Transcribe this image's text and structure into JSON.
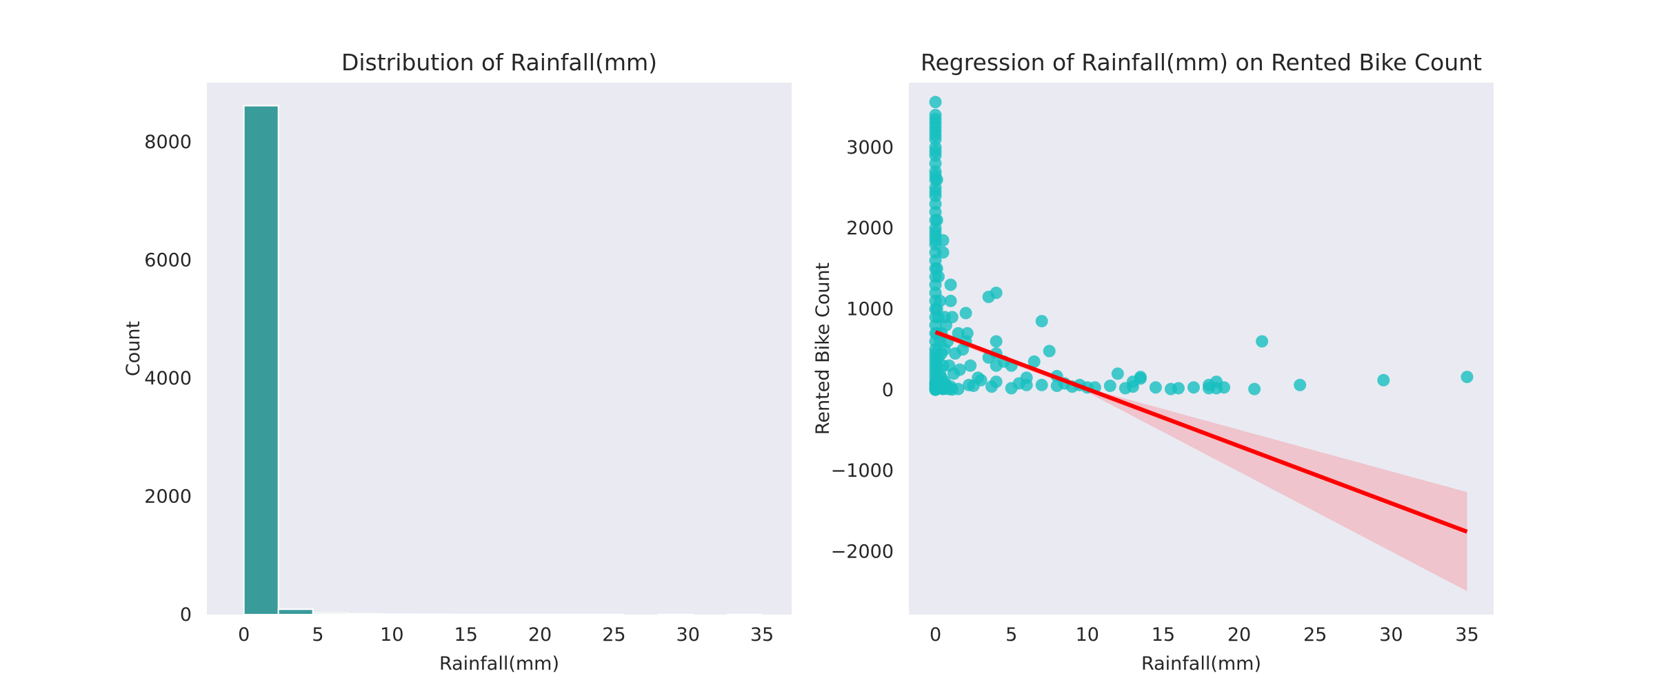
{
  "chart_data": [
    {
      "type": "bar",
      "title": "Distribution of Rainfall(mm)",
      "xlabel": "Rainfall(mm)",
      "ylabel": "Count",
      "xlim": [
        -2.5,
        37.0
      ],
      "ylim": [
        0,
        9000
      ],
      "xticks": [
        0,
        5,
        10,
        15,
        20,
        25,
        30,
        35
      ],
      "yticks": [
        0,
        2000,
        4000,
        6000,
        8000
      ],
      "bin_width": 2.33,
      "bins": [
        {
          "x0": 0.0,
          "value": 8610
        },
        {
          "x0": 2.33,
          "value": 90
        },
        {
          "x0": 4.67,
          "value": 25
        },
        {
          "x0": 7.0,
          "value": 14
        },
        {
          "x0": 9.33,
          "value": 8
        },
        {
          "x0": 11.67,
          "value": 5
        },
        {
          "x0": 14.0,
          "value": 3
        },
        {
          "x0": 16.33,
          "value": 3
        },
        {
          "x0": 18.67,
          "value": 3
        },
        {
          "x0": 21.0,
          "value": 2
        },
        {
          "x0": 23.33,
          "value": 1
        },
        {
          "x0": 25.67,
          "value": 0
        },
        {
          "x0": 28.0,
          "value": 1
        },
        {
          "x0": 30.33,
          "value": 0
        },
        {
          "x0": 32.67,
          "value": 1
        }
      ],
      "bar_color": "#3a9b9b",
      "grid": false
    },
    {
      "type": "scatter",
      "title": "Regression of Rainfall(mm) on Rented Bike Count",
      "xlabel": "Rainfall(mm)",
      "ylabel": "Rented Bike Count",
      "xlim": [
        -1.75,
        36.75
      ],
      "ylim": [
        -2780,
        3800
      ],
      "xticks": [
        0,
        5,
        10,
        15,
        20,
        25,
        30,
        35
      ],
      "yticks": [
        -2000,
        -1000,
        0,
        1000,
        2000,
        3000
      ],
      "point_color": "#17bfbf",
      "line_color": "#ff0000",
      "band_color": "#f0c0c8",
      "grid": false,
      "regression": {
        "x": [
          0,
          35
        ],
        "y": [
          715,
          -1755
        ]
      },
      "confidence_band": {
        "x": [
          0,
          10,
          35
        ],
        "lower": [
          675,
          -30,
          -2490
        ],
        "upper": [
          755,
          20,
          -1265
        ]
      },
      "points": {
        "x": [
          0,
          0,
          0,
          0,
          0,
          0,
          0,
          0,
          0,
          0,
          0,
          0,
          0,
          0,
          0,
          0,
          0,
          0,
          0,
          0,
          0,
          0,
          0,
          0,
          0,
          0,
          0,
          0,
          0,
          0,
          0,
          0,
          0,
          0,
          0,
          0,
          0,
          0,
          0,
          0,
          0,
          0,
          0,
          0,
          0,
          0,
          0,
          0,
          0,
          0,
          0,
          0,
          0,
          0,
          0.1,
          0.1,
          0.1,
          0.1,
          0.1,
          0.1,
          0.1,
          0.2,
          0.2,
          0.2,
          0.2,
          0.3,
          0.3,
          0.3,
          0.3,
          0.4,
          0.4,
          0.4,
          0.4,
          0.5,
          0.5,
          0.5,
          0.5,
          0.6,
          0.6,
          0.6,
          0.6,
          0.7,
          0.7,
          0.8,
          0.8,
          0.9,
          0.9,
          1.0,
          1.0,
          1.0,
          1.1,
          1.1,
          1.2,
          1.3,
          1.5,
          1.5,
          1.6,
          1.8,
          2.0,
          2.0,
          2.1,
          2.2,
          2.3,
          2.5,
          2.8,
          3.0,
          3.5,
          3.5,
          3.7,
          4.0,
          4.0,
          4.0,
          4.0,
          4.0,
          4.5,
          5.0,
          5.0,
          5.5,
          6.0,
          6.0,
          6.5,
          7.0,
          7.0,
          7.5,
          8.0,
          8.0,
          8.5,
          9.0,
          9.5,
          10.0,
          10.5,
          11.5,
          12.0,
          12.5,
          13.0,
          13.0,
          13.5,
          13.5,
          14.5,
          15.5,
          16.0,
          17.0,
          18.0,
          18.0,
          18.5,
          18.5,
          19.0,
          21.0,
          21.5,
          24.0,
          29.5,
          35.0
        ],
        "y": [
          3560,
          3400,
          3350,
          3300,
          3250,
          3200,
          3150,
          3100,
          3000,
          2950,
          2900,
          2800,
          2700,
          2650,
          2600,
          2500,
          2450,
          2400,
          2300,
          2200,
          2100,
          2000,
          1950,
          1900,
          1850,
          1800,
          1700,
          1600,
          1500,
          1400,
          1300,
          1200,
          1100,
          1000,
          900,
          800,
          700,
          600,
          500,
          450,
          400,
          350,
          300,
          250,
          200,
          150,
          100,
          80,
          60,
          40,
          20,
          10,
          5,
          0,
          2600,
          2100,
          1500,
          1000,
          700,
          300,
          50,
          1400,
          900,
          400,
          60,
          1100,
          600,
          200,
          30,
          700,
          450,
          150,
          20,
          1850,
          1700,
          300,
          10,
          900,
          500,
          100,
          15,
          800,
          60,
          600,
          20,
          300,
          10,
          1300,
          1100,
          40,
          900,
          5,
          200,
          450,
          700,
          10,
          250,
          500,
          600,
          950,
          700,
          60,
          300,
          50,
          150,
          120,
          1150,
          400,
          40,
          1200,
          600,
          450,
          300,
          100,
          350,
          300,
          20,
          80,
          150,
          60,
          350,
          850,
          60,
          480,
          170,
          50,
          80,
          40,
          60,
          30,
          30,
          50,
          200,
          20,
          40,
          100,
          140,
          160,
          30,
          10,
          20,
          30,
          20,
          60,
          100,
          20,
          30,
          10,
          600,
          60,
          120,
          160
        ]
      }
    }
  ]
}
